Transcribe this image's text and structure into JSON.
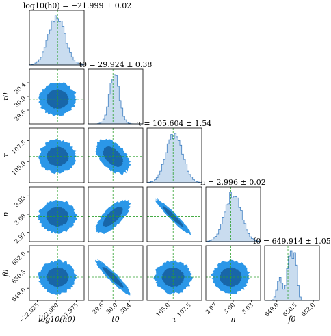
{
  "chart_data": {
    "type": "corner",
    "parameters": [
      {
        "key": "log10h0",
        "axis_label": "log10(h0)",
        "title": "log10(h0) = −21.999 ± 0.02",
        "median": -21.999,
        "sigma": 0.02,
        "range": [
          -22.035,
          -21.965
        ],
        "ticks": [
          -22.025,
          -22.0,
          -21.975
        ],
        "tick_labels": [
          "−22.025",
          "−22.000",
          "−21.975"
        ],
        "hist_shape": "gaussian"
      },
      {
        "key": "t0",
        "axis_label": "t0",
        "title": "t0 = 29.924 ± 0.38",
        "median": 29.924,
        "sigma": 0.38,
        "range": [
          29.2,
          30.8
        ],
        "ticks": [
          29.6,
          30.0,
          30.4
        ],
        "tick_labels": [
          "29.6",
          "30.0",
          "30.4"
        ],
        "hist_shape": "narrow"
      },
      {
        "key": "tau",
        "axis_label": "τ",
        "title": "τ = 105.604 ± 1.54",
        "median": 105.604,
        "sigma": 1.54,
        "range": [
          102.5,
          109.0
        ],
        "ticks": [
          105.0,
          107.5
        ],
        "tick_labels": [
          "105.0",
          "107.5"
        ],
        "hist_shape": "gaussian"
      },
      {
        "key": "n",
        "axis_label": "n",
        "title": "n = 2.996 ± 0.02",
        "median": 2.996,
        "sigma": 0.02,
        "range": [
          2.955,
          3.045
        ],
        "ticks": [
          2.97,
          3.0,
          3.03
        ],
        "tick_labels": [
          "2.97",
          "3.00",
          "3.03"
        ],
        "hist_shape": "gaussian"
      },
      {
        "key": "f0",
        "axis_label": "f0",
        "title": "f0 = 649.914 ± 1.05",
        "median": 649.914,
        "sigma": 1.05,
        "range": [
          648.0,
          652.5
        ],
        "ticks": [
          649.0,
          650.5,
          652.0
        ],
        "tick_labels": [
          "649.0",
          "650.5",
          "652.0"
        ],
        "hist_shape": "multimodal"
      }
    ],
    "correlations": {
      "t0|tau": -0.3,
      "t0|n": 0.55,
      "tau|n": -0.95,
      "t0|f0": -0.9
    },
    "truth_lines": true,
    "colors": {
      "hist_fill": "#c9dcef",
      "hist_line": "#3a7cc0",
      "contour_outer": "#2b97e8",
      "contour_inner": "#1866a8",
      "truth": "#2ca02c"
    }
  }
}
